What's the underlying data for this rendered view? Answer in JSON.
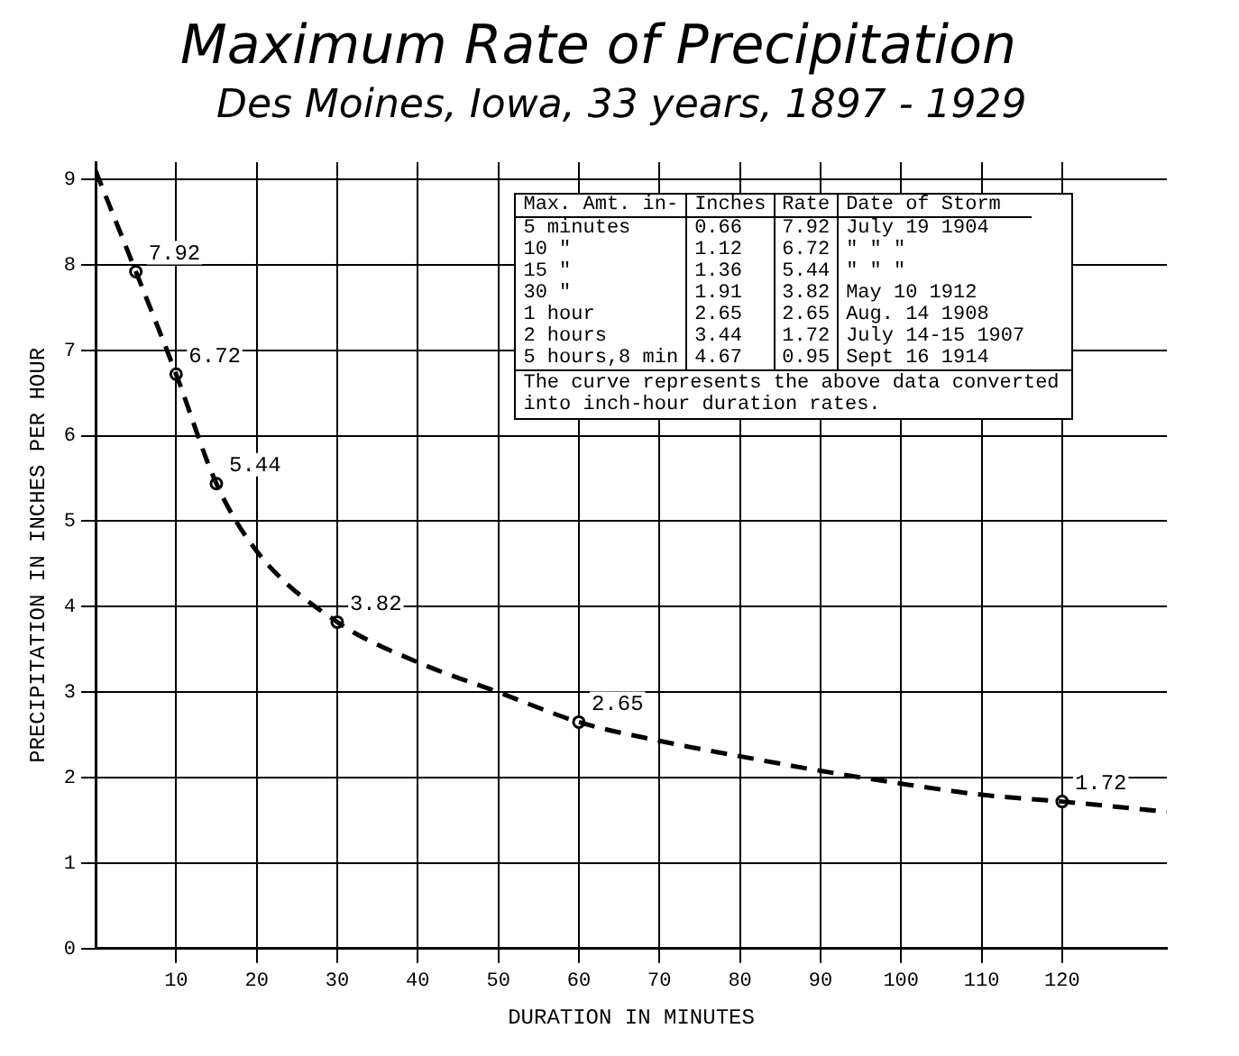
{
  "chart_data": {
    "type": "line",
    "title": "Maximum Rate of Precipitation",
    "subtitle": "Des Moines, Iowa, 33 years, 1897 - 1929",
    "xlabel": "DURATION IN MINUTES",
    "ylabel": "PRECIPITATION IN INCHES PER HOUR",
    "xlim": [
      0,
      133
    ],
    "xticks": [
      10,
      20,
      30,
      40,
      50,
      60,
      70,
      80,
      90,
      100,
      110,
      120
    ],
    "ylim": [
      0,
      9.2
    ],
    "yticks": [
      0,
      1,
      2,
      3,
      4,
      5,
      6,
      7,
      8,
      9
    ],
    "grid": true,
    "series": [
      {
        "type": "line",
        "line_style": "dashed",
        "marker": "none",
        "color": "#000000",
        "x": [
          0,
          5,
          10,
          15,
          20,
          30,
          40,
          50,
          60,
          70,
          80,
          90,
          100,
          110,
          120,
          133
        ],
        "values": [
          9.1,
          7.92,
          6.72,
          5.44,
          4.65,
          3.82,
          3.35,
          3.0,
          2.65,
          2.43,
          2.25,
          2.08,
          1.93,
          1.8,
          1.72,
          1.6
        ]
      },
      {
        "type": "scatter",
        "marker": "circle",
        "color": "#000000",
        "data_labels": true,
        "x": [
          5,
          10,
          15,
          30,
          60,
          120
        ],
        "values": [
          7.92,
          6.72,
          5.44,
          3.82,
          2.65,
          1.72
        ]
      }
    ],
    "annotations": [
      "Max. Amt. in-",
      "Inches",
      "Rate",
      "Date of Storm",
      "5 minutes",
      "0.66",
      "7.92",
      "July 19 1904",
      "10 \"",
      "1.12",
      "6.72",
      "\" \" \"",
      "15 \"",
      "1.36",
      "5.44",
      "\" \" \"",
      "30 \"",
      "1.91",
      "3.82",
      "May 10 1912",
      "1 hour",
      "2.65",
      "2.65",
      "Aug. 14 1908",
      "2 hours",
      "3.44",
      "1.72",
      "July 14-15 1907",
      "5 hours,8 min",
      "4.67",
      "0.95",
      "Sept 16 1914",
      "The curve represents the above data converted into inch-hour duration rates."
    ]
  }
}
